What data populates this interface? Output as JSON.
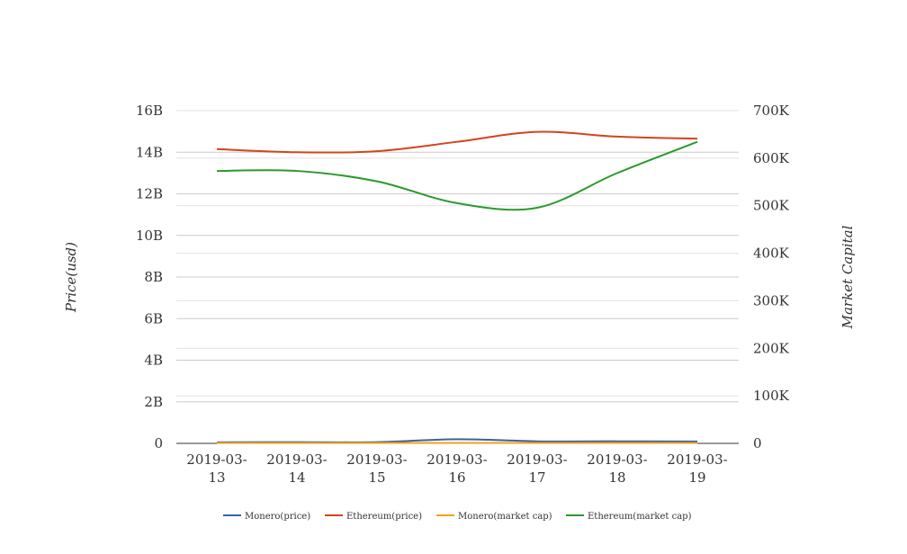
{
  "chart_data": {
    "type": "line",
    "x": [
      "2019-03-13",
      "2019-03-14",
      "2019-03-15",
      "2019-03-16",
      "2019-03-17",
      "2019-03-18",
      "2019-03-19"
    ],
    "x_tick_lines": [
      [
        "2019-03-",
        "13"
      ],
      [
        "2019-03-",
        "14"
      ],
      [
        "2019-03-",
        "15"
      ],
      [
        "2019-03-",
        "16"
      ],
      [
        "2019-03-",
        "17"
      ],
      [
        "2019-03-",
        "18"
      ],
      [
        "2019-03-",
        "19"
      ]
    ],
    "ylabel_left": "Price(usd)",
    "ylabel_right": "Market Capital",
    "ylim_left": [
      0,
      16000000000
    ],
    "ylim_right": [
      0,
      700000
    ],
    "yticks_left": [
      "0",
      "2B",
      "4B",
      "6B",
      "8B",
      "10B",
      "12B",
      "14B",
      "16B"
    ],
    "yticks_right": [
      "0",
      "100K",
      "200K",
      "300K",
      "400K",
      "500K",
      "600K",
      "700K"
    ],
    "grid": true,
    "legend_position": "bottom",
    "series": [
      {
        "name": "Monero(price)",
        "axis": "left",
        "color": "#3a62a6",
        "values": [
          50000000,
          60000000,
          60000000,
          200000000,
          100000000,
          100000000,
          90000000
        ]
      },
      {
        "name": "Ethereum(price)",
        "axis": "left",
        "color": "#d2441f",
        "values": [
          14150000000,
          14000000000,
          14050000000,
          14500000000,
          14980000000,
          14750000000,
          14650000000
        ]
      },
      {
        "name": "Monero(market cap)",
        "axis": "left",
        "color": "#f0a21b",
        "values": [
          20000000,
          20000000,
          20000000,
          20000000,
          20000000,
          20000000,
          20000000
        ]
      },
      {
        "name": "Ethereum(market cap)",
        "axis": "left",
        "color": "#2a9a2a",
        "values": [
          13100000000,
          13100000000,
          12600000000,
          11550000000,
          11330000000,
          13000000000,
          14500000000
        ]
      }
    ]
  }
}
